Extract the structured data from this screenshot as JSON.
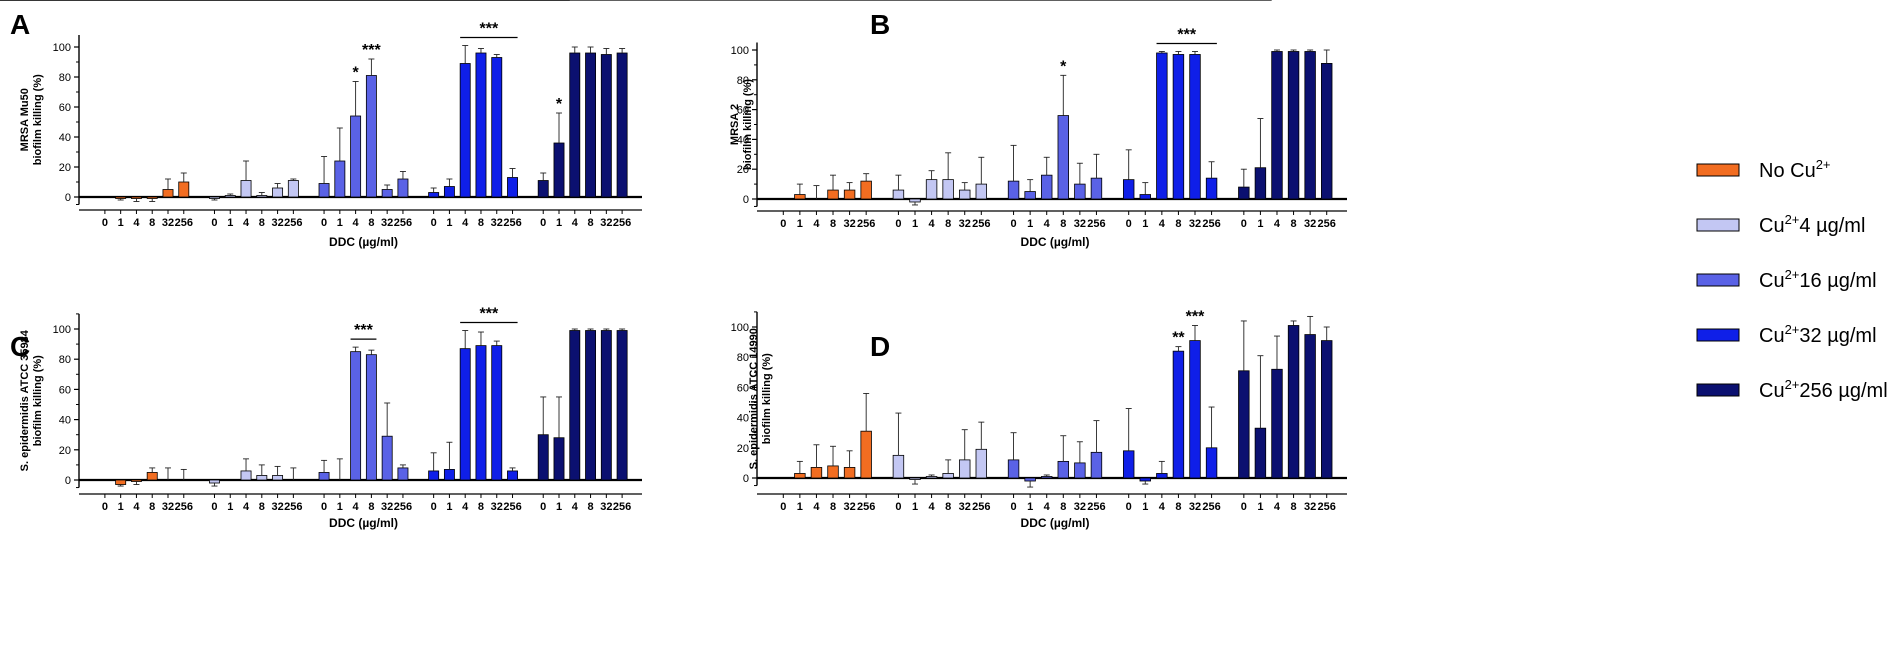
{
  "colors": {
    "No Cu2+": "#f26d21",
    "Cu2+4": "#c3c7f3",
    "Cu2+16": "#5a62e6",
    "Cu2+32": "#0f1fe8",
    "Cu2+256": "#0b1070"
  },
  "legend": [
    {
      "key": "No Cu2+",
      "base": "No Cu",
      "sup": "2+",
      "rest": ""
    },
    {
      "key": "Cu2+4",
      "base": "Cu",
      "sup": "2+",
      "rest": "4 µg/ml"
    },
    {
      "key": "Cu2+16",
      "base": "Cu",
      "sup": "2+",
      "rest": "16 µg/ml"
    },
    {
      "key": "Cu2+32",
      "base": "Cu",
      "sup": "2+",
      "rest": "32 µg/ml"
    },
    {
      "key": "Cu2+256",
      "base": "Cu",
      "sup": "2+",
      "rest": "256 µg/ml"
    }
  ],
  "chart_data": [
    {
      "panel": "A",
      "type": "bar",
      "ylabel_line1": "MRSA Mu50",
      "ylabel_line2": "biofilm killing (%)",
      "xlabel": "DDC (µg/ml)",
      "ylim": [
        -5,
        108
      ],
      "yticks": [
        0,
        20,
        40,
        60,
        80,
        100
      ],
      "categories": [
        "0",
        "1",
        "4",
        "8",
        "32",
        "256"
      ],
      "series": [
        {
          "name": "No Cu2+",
          "values": [
            0,
            -1,
            -1,
            -1,
            5,
            10
          ],
          "errors": [
            0,
            1,
            2,
            2,
            7,
            6
          ]
        },
        {
          "name": "Cu2+4",
          "values": [
            -1,
            1,
            11,
            1,
            6,
            11
          ],
          "errors": [
            1,
            1,
            13,
            2,
            3,
            1
          ]
        },
        {
          "name": "Cu2+16",
          "values": [
            9,
            24,
            54,
            81,
            5,
            12
          ],
          "errors": [
            18,
            22,
            23,
            11,
            3,
            5
          ]
        },
        {
          "name": "Cu2+32",
          "values": [
            3,
            7,
            89,
            96,
            93,
            13
          ],
          "errors": [
            3,
            5,
            12,
            3,
            2,
            6
          ]
        },
        {
          "name": "Cu2+256",
          "values": [
            11,
            36,
            96,
            96,
            95,
            96
          ],
          "errors": [
            5,
            20,
            4,
            4,
            4,
            3
          ]
        }
      ],
      "annotations": [
        {
          "text": "*",
          "series": 2,
          "cat": 2,
          "span": 0
        },
        {
          "text": "***",
          "series": 2,
          "cat": 3,
          "span": 0
        },
        {
          "text": "***",
          "series": 3,
          "cat": 2,
          "span": 3
        },
        {
          "text": "*",
          "series": 4,
          "cat": 1,
          "span": 0
        },
        {
          "text": "***",
          "series": 4,
          "cat": 2,
          "span": 4
        }
      ]
    },
    {
      "panel": "B",
      "type": "bar",
      "ylabel_line1": "MRSA 2",
      "ylabel_line2": "biofilm killing (%)",
      "xlabel": "DDC (µg/ml)",
      "ylim": [
        -5,
        105
      ],
      "yticks": [
        0,
        20,
        40,
        60,
        80,
        100
      ],
      "categories": [
        "0",
        "1",
        "4",
        "8",
        "32",
        "256"
      ],
      "series": [
        {
          "name": "No Cu2+",
          "values": [
            0,
            3,
            0,
            6,
            6,
            12
          ],
          "errors": [
            0,
            7,
            9,
            10,
            5,
            5
          ]
        },
        {
          "name": "Cu2+4",
          "values": [
            6,
            -2,
            13,
            13,
            6,
            10
          ],
          "errors": [
            10,
            2,
            6,
            18,
            5,
            18
          ]
        },
        {
          "name": "Cu2+16",
          "values": [
            12,
            5,
            16,
            56,
            10,
            14
          ],
          "errors": [
            24,
            8,
            12,
            27,
            14,
            16
          ]
        },
        {
          "name": "Cu2+32",
          "values": [
            13,
            3,
            98,
            97,
            97,
            14
          ],
          "errors": [
            20,
            8,
            1,
            2,
            2,
            11
          ]
        },
        {
          "name": "Cu2+256",
          "values": [
            8,
            21,
            99,
            99,
            99,
            91
          ],
          "errors": [
            12,
            33,
            1,
            1,
            1,
            9
          ]
        }
      ],
      "annotations": [
        {
          "text": "*",
          "series": 2,
          "cat": 3,
          "span": 0
        },
        {
          "text": "***",
          "series": 3,
          "cat": 2,
          "span": 3
        },
        {
          "text": "***",
          "series": 4,
          "cat": 2,
          "span": 4
        }
      ]
    },
    {
      "panel": "C",
      "type": "bar",
      "ylabel_line1": "S. epidermidis ATCC 35984",
      "ylabel_line2": "biofilm killing (%)",
      "xlabel": "DDC (µg/ml)",
      "ylim": [
        -5,
        110
      ],
      "yticks": [
        0,
        20,
        40,
        60,
        80,
        100
      ],
      "categories": [
        "0",
        "1",
        "4",
        "8",
        "32",
        "256"
      ],
      "series": [
        {
          "name": "No Cu2+",
          "values": [
            0,
            -3,
            -1,
            5,
            0,
            0
          ],
          "errors": [
            0,
            1,
            2,
            3,
            8,
            7
          ]
        },
        {
          "name": "Cu2+4",
          "values": [
            -2,
            0,
            6,
            3,
            3,
            0
          ],
          "errors": [
            2,
            0,
            8,
            7,
            6,
            8
          ]
        },
        {
          "name": "Cu2+16",
          "values": [
            5,
            0,
            85,
            83,
            29,
            8
          ],
          "errors": [
            8,
            14,
            3,
            3,
            22,
            2
          ]
        },
        {
          "name": "Cu2+32",
          "values": [
            6,
            7,
            87,
            89,
            89,
            6
          ],
          "errors": [
            12,
            18,
            12,
            9,
            3,
            2
          ]
        },
        {
          "name": "Cu2+256",
          "values": [
            30,
            28,
            99,
            99,
            99,
            99
          ],
          "errors": [
            25,
            27,
            1,
            1,
            1,
            1
          ]
        }
      ],
      "annotations": [
        {
          "text": "***",
          "series": 2,
          "cat": 2,
          "span": 1
        },
        {
          "text": "***",
          "series": 3,
          "cat": 2,
          "span": 3
        },
        {
          "text": "***",
          "series": 4,
          "cat": 2,
          "span": 5
        }
      ]
    },
    {
      "panel": "D",
      "type": "bar",
      "ylabel_line1": "S. epidermidis ATCC 14990",
      "ylabel_line2": "biofilm killing (%)",
      "xlabel": "DDC (µg/ml)",
      "ylim": [
        -5,
        110
      ],
      "yticks": [
        0,
        20,
        40,
        60,
        80,
        100
      ],
      "categories": [
        "0",
        "1",
        "4",
        "8",
        "32",
        "256"
      ],
      "series": [
        {
          "name": "No Cu2+",
          "values": [
            0,
            3,
            7,
            8,
            7,
            31
          ],
          "errors": [
            0,
            8,
            15,
            13,
            11,
            25
          ]
        },
        {
          "name": "Cu2+4",
          "values": [
            15,
            -1,
            1,
            3,
            12,
            19
          ],
          "errors": [
            28,
            3,
            1,
            9,
            20,
            18
          ]
        },
        {
          "name": "Cu2+16",
          "values": [
            12,
            -2,
            1,
            11,
            10,
            17
          ],
          "errors": [
            18,
            4,
            1,
            17,
            14,
            21
          ]
        },
        {
          "name": "Cu2+32",
          "values": [
            18,
            -2,
            3,
            84,
            91,
            20
          ],
          "errors": [
            28,
            2,
            8,
            3,
            10,
            27
          ]
        },
        {
          "name": "Cu2+256",
          "values": [
            71,
            33,
            72,
            101,
            95,
            91
          ],
          "errors": [
            33,
            48,
            22,
            3,
            12,
            9
          ]
        }
      ],
      "annotations": [
        {
          "text": "**",
          "series": 3,
          "cat": 3,
          "span": 0
        },
        {
          "text": "***",
          "series": 3,
          "cat": 4,
          "span": 0
        }
      ]
    }
  ]
}
